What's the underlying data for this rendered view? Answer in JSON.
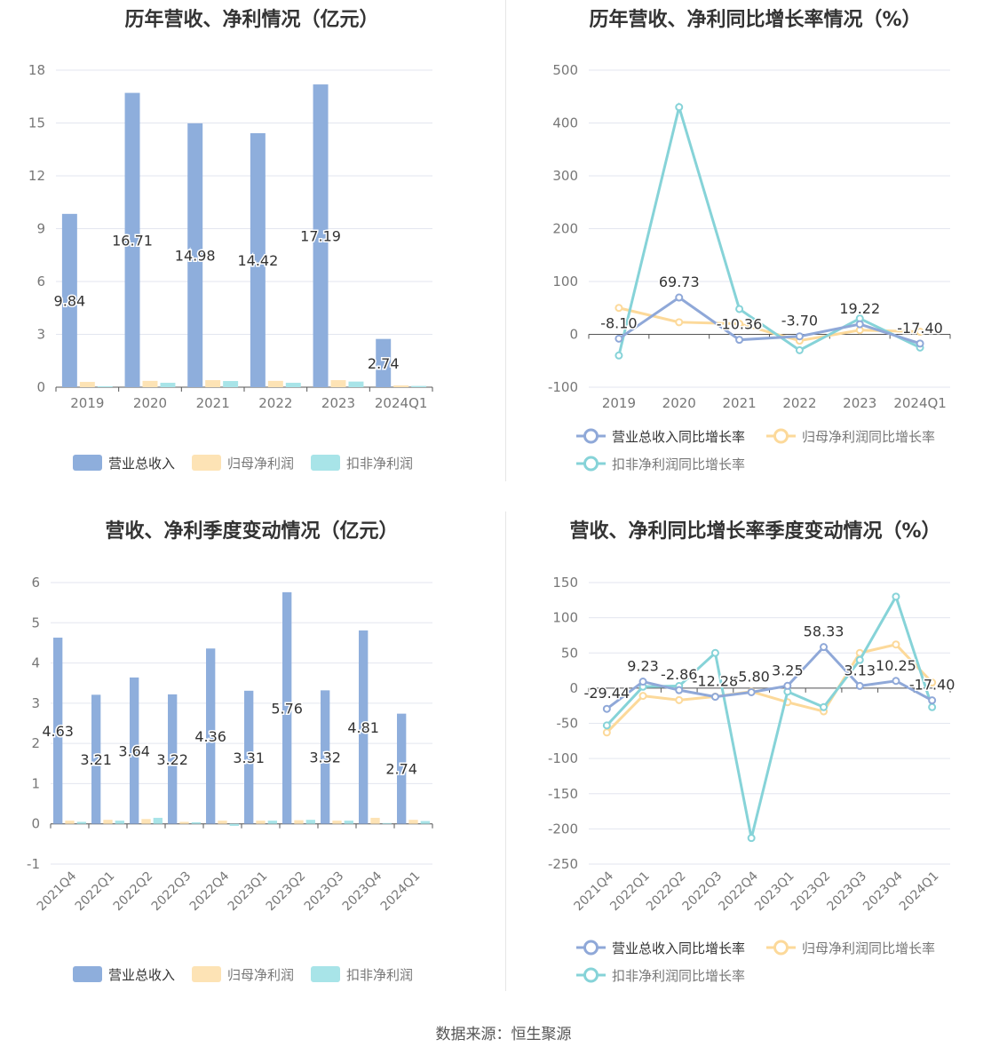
{
  "source": "数据来源：恒生聚源",
  "colors": {
    "revenue": "#8eaedc",
    "net_profit": "#fde3b5",
    "deducted_profit": "#a8e4e8",
    "revenue_line": "#8fa8d8",
    "net_profit_line": "#fcd99a",
    "deducted_line": "#86d3d8"
  },
  "chart_data": [
    {
      "type": "bar",
      "title": "历年营收、净利情况（亿元）",
      "categories": [
        "2019",
        "2020",
        "2021",
        "2022",
        "2023",
        "2024Q1"
      ],
      "ylim": [
        0,
        18
      ],
      "yticks": [
        "0",
        "3",
        "6",
        "9",
        "12",
        "15",
        "18"
      ],
      "series": [
        {
          "name": "营业总收入",
          "values": [
            9.84,
            16.71,
            14.98,
            14.42,
            17.19,
            2.74
          ],
          "labels": [
            "9.84",
            "16.71",
            "14.98",
            "14.42",
            "17.19",
            "2.74"
          ]
        },
        {
          "name": "归母净利润",
          "values": [
            0.3,
            0.36,
            0.4,
            0.36,
            0.4,
            0.1
          ]
        },
        {
          "name": "扣非净利润",
          "values": [
            0.05,
            0.25,
            0.35,
            0.25,
            0.32,
            0.07
          ]
        }
      ]
    },
    {
      "type": "line",
      "title": "历年营收、净利同比增长率情况（%）",
      "categories": [
        "2019",
        "2020",
        "2021",
        "2022",
        "2023",
        "2024Q1"
      ],
      "ylim": [
        -100,
        500
      ],
      "yticks": [
        "-100",
        "0",
        "100",
        "200",
        "300",
        "400",
        "500"
      ],
      "series": [
        {
          "name": "营业总收入同比增长率",
          "values": [
            -8.1,
            69.73,
            -10.36,
            -3.7,
            19.22,
            -17.4
          ],
          "labels": [
            "-8.10",
            "69.73",
            "-10.36",
            "-3.70",
            "19.22",
            "-17.40"
          ]
        },
        {
          "name": "归母净利润同比增长率",
          "values": [
            50,
            23,
            20,
            -12,
            8,
            5
          ]
        },
        {
          "name": "扣非净利润同比增长率",
          "values": [
            -40,
            430,
            48,
            -30,
            30,
            -25
          ]
        }
      ]
    },
    {
      "type": "bar",
      "title": "营收、净利季度变动情况（亿元）",
      "categories": [
        "2021Q4",
        "2022Q1",
        "2022Q2",
        "2022Q3",
        "2022Q4",
        "2023Q1",
        "2023Q2",
        "2023Q3",
        "2023Q4",
        "2024Q1"
      ],
      "ylim": [
        -1,
        6
      ],
      "yticks": [
        "-1",
        "0",
        "1",
        "2",
        "3",
        "4",
        "5",
        "6"
      ],
      "series": [
        {
          "name": "营业总收入",
          "values": [
            4.63,
            3.21,
            3.64,
            3.22,
            4.36,
            3.31,
            5.76,
            3.32,
            4.81,
            2.74
          ],
          "labels": [
            "4.63",
            "3.21",
            "3.64",
            "3.22",
            "4.36",
            "3.31",
            "5.76",
            "3.32",
            "4.81",
            "2.74"
          ]
        },
        {
          "name": "归母净利润",
          "values": [
            0.08,
            0.1,
            0.12,
            0.05,
            0.08,
            0.08,
            0.09,
            0.08,
            0.15,
            0.1
          ]
        },
        {
          "name": "扣非净利润",
          "values": [
            0.05,
            0.08,
            0.15,
            0.04,
            -0.05,
            0.08,
            0.1,
            0.08,
            0.02,
            0.07
          ]
        }
      ]
    },
    {
      "type": "line",
      "title": "营收、净利同比增长率季度变动情况（%）",
      "categories": [
        "2021Q4",
        "2022Q1",
        "2022Q2",
        "2022Q3",
        "2022Q4",
        "2023Q1",
        "2023Q2",
        "2023Q3",
        "2023Q4",
        "2024Q1"
      ],
      "ylim": [
        -250,
        150
      ],
      "yticks": [
        "-250",
        "-200",
        "-150",
        "-100",
        "-50",
        "0",
        "50",
        "100",
        "150"
      ],
      "series": [
        {
          "name": "营业总收入同比增长率",
          "values": [
            -29.44,
            9.23,
            -2.86,
            -12.28,
            -5.8,
            3.25,
            58.33,
            3.13,
            10.25,
            -17.4
          ],
          "labels": [
            "-29.44",
            "9.23",
            "-2.86",
            "-12.28",
            "-5.80",
            "3.25",
            "58.33",
            "3.13",
            "10.25",
            "-17.40"
          ]
        },
        {
          "name": "归母净利润同比增长率",
          "values": [
            -63,
            -11,
            -17,
            -12,
            -5,
            -20,
            -33,
            50,
            62,
            8
          ]
        },
        {
          "name": "扣非净利润同比增长率",
          "values": [
            -53,
            2,
            3,
            50,
            -213,
            -5,
            -27,
            40,
            130,
            -27
          ]
        }
      ]
    }
  ]
}
